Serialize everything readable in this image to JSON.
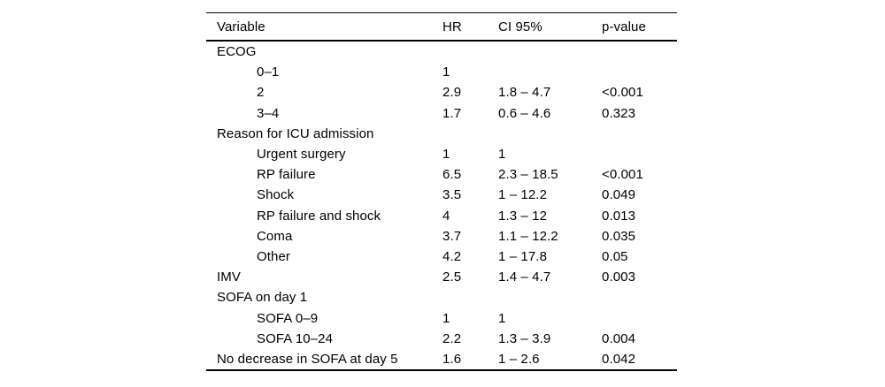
{
  "page": {
    "background_color": "#ffffff",
    "text_color": "#000000",
    "rule_color": "#000000"
  },
  "table": {
    "columns": [
      "Variable",
      "HR",
      "CI 95%",
      "p-value"
    ],
    "rows": [
      {
        "label": "ECOG",
        "indent": 0,
        "hr": "",
        "ci": "",
        "p": ""
      },
      {
        "label": "0–1",
        "indent": 1,
        "hr": "1",
        "ci": "",
        "p": ""
      },
      {
        "label": "2",
        "indent": 1,
        "hr": "2.9",
        "ci": "1.8 – 4.7",
        "p": "<0.001"
      },
      {
        "label": "3–4",
        "indent": 1,
        "hr": "1.7",
        "ci": "0.6 – 4.6",
        "p": "0.323"
      },
      {
        "label": "Reason for ICU admission",
        "indent": 0,
        "hr": "",
        "ci": "",
        "p": ""
      },
      {
        "label": "Urgent surgery",
        "indent": 1,
        "hr": "1",
        "ci": "1",
        "p": ""
      },
      {
        "label": "RP failure",
        "indent": 1,
        "hr": "6.5",
        "ci": "2.3 – 18.5",
        "p": "<0.001"
      },
      {
        "label": "Shock",
        "indent": 1,
        "hr": "3.5",
        "ci": "1 – 12.2",
        "p": "0.049"
      },
      {
        "label": "RP failure and shock",
        "indent": 1,
        "hr": "4",
        "ci": "1.3 – 12",
        "p": "0.013"
      },
      {
        "label": "Coma",
        "indent": 1,
        "hr": "3.7",
        "ci": "1.1 – 12.2",
        "p": "0.035"
      },
      {
        "label": "Other",
        "indent": 1,
        "hr": "4.2",
        "ci": "1 – 17.8",
        "p": "0.05"
      },
      {
        "label": "IMV",
        "indent": 0,
        "hr": "2.5",
        "ci": "1.4 – 4.7",
        "p": "0.003"
      },
      {
        "label": "SOFA on day 1",
        "indent": 0,
        "hr": "",
        "ci": "",
        "p": ""
      },
      {
        "label": "SOFA 0–9",
        "indent": 1,
        "hr": "1",
        "ci": "1",
        "p": ""
      },
      {
        "label": "SOFA 10–24",
        "indent": 1,
        "hr": "2.2",
        "ci": "1.3 – 3.9",
        "p": "0.004"
      },
      {
        "label": "No decrease in SOFA at day 5",
        "indent": 0,
        "hr": "1.6",
        "ci": "1 – 2.6",
        "p": "0.042"
      }
    ]
  }
}
